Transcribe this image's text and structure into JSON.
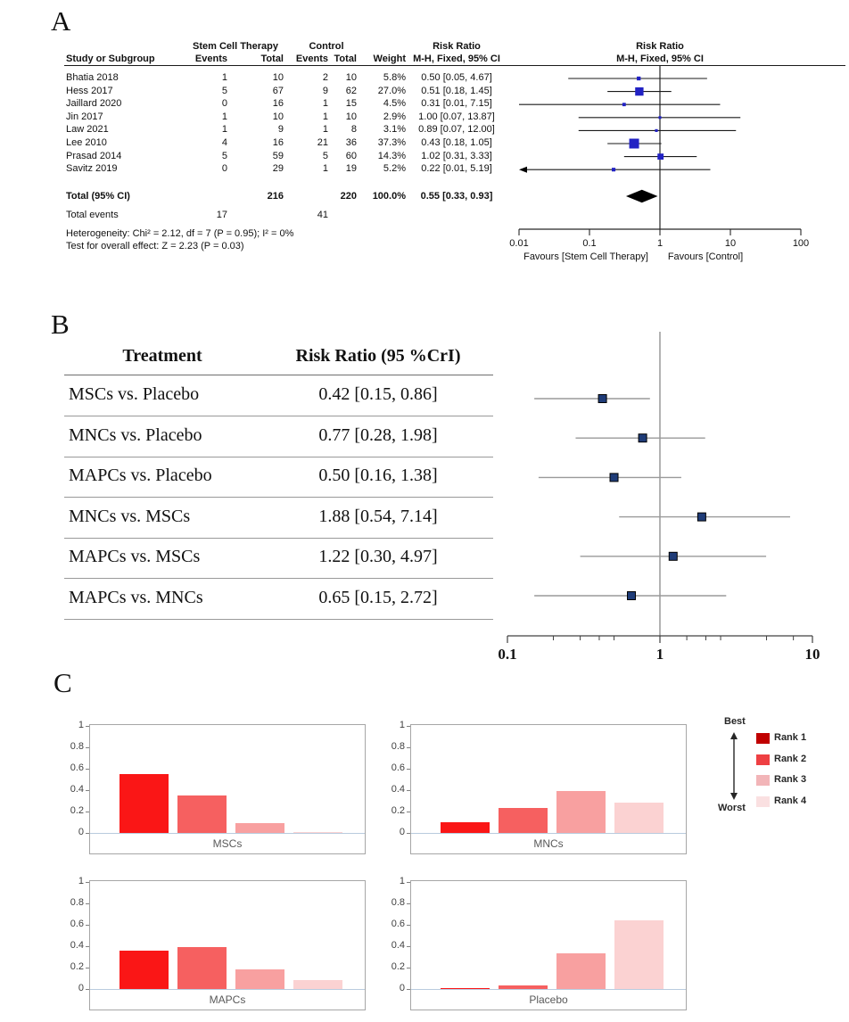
{
  "panels": {
    "A": {
      "label": "A",
      "table": {
        "group1": "Stem Cell Therapy",
        "group2": "Control",
        "risk_ratio_label": "Risk Ratio",
        "method_label": "M-H, Fixed, 95% CI",
        "col_study": "Study or Subgroup",
        "col_events": "Events",
        "col_total": "Total",
        "col_weight": "Weight",
        "rows": [
          {
            "study": "Bhatia 2018",
            "e1": "1",
            "t1": "10",
            "e2": "2",
            "t2": "10",
            "weight": "5.8%",
            "ci": "0.50 [0.05, 4.67]"
          },
          {
            "study": "Hess 2017",
            "e1": "5",
            "t1": "67",
            "e2": "9",
            "t2": "62",
            "weight": "27.0%",
            "ci": "0.51 [0.18, 1.45]"
          },
          {
            "study": "Jaillard 2020",
            "e1": "0",
            "t1": "16",
            "e2": "1",
            "t2": "15",
            "weight": "4.5%",
            "ci": "0.31 [0.01, 7.15]"
          },
          {
            "study": "Jin 2017",
            "e1": "1",
            "t1": "10",
            "e2": "1",
            "t2": "10",
            "weight": "2.9%",
            "ci": "1.00 [0.07, 13.87]"
          },
          {
            "study": "Law 2021",
            "e1": "1",
            "t1": "9",
            "e2": "1",
            "t2": "8",
            "weight": "3.1%",
            "ci": "0.89 [0.07, 12.00]"
          },
          {
            "study": "Lee 2010",
            "e1": "4",
            "t1": "16",
            "e2": "21",
            "t2": "36",
            "weight": "37.3%",
            "ci": "0.43 [0.18, 1.05]"
          },
          {
            "study": "Prasad 2014",
            "e1": "5",
            "t1": "59",
            "e2": "5",
            "t2": "60",
            "weight": "14.3%",
            "ci": "1.02 [0.31, 3.33]"
          },
          {
            "study": "Savitz 2019",
            "e1": "0",
            "t1": "29",
            "e2": "1",
            "t2": "19",
            "weight": "5.2%",
            "ci": "0.22 [0.01, 5.19]"
          }
        ],
        "total_label": "Total (95% CI)",
        "total_t1": "216",
        "total_t2": "220",
        "total_weight": "100.0%",
        "total_ci": "0.55 [0.33, 0.93]",
        "total_events_label": "Total events",
        "total_e1": "17",
        "total_e2": "41",
        "heterogeneity": "Heterogeneity: Chi² = 2.12, df = 7 (P = 0.95); I² = 0%",
        "overall_effect": "Test for overall effect: Z = 2.23 (P = 0.03)"
      }
    },
    "B": {
      "label": "B",
      "table": {
        "col_treatment": "Treatment",
        "col_rr": "Risk Ratio (95 %CrI)",
        "rows": [
          {
            "treatment": "MSCs vs. Placebo",
            "value": "0.42 [0.15, 0.86]"
          },
          {
            "treatment": "MNCs vs. Placebo",
            "value": "0.77 [0.28, 1.98]"
          },
          {
            "treatment": "MAPCs vs. Placebo",
            "value": "0.50 [0.16, 1.38]"
          },
          {
            "treatment": "MNCs vs. MSCs",
            "value": "1.88 [0.54, 7.14]"
          },
          {
            "treatment": "MAPCs vs. MSCs",
            "value": "1.22 [0.30, 4.97]"
          },
          {
            "treatment": "MAPCs vs. MNCs",
            "value": "0.65 [0.15, 2.72]"
          }
        ]
      }
    },
    "C": {
      "label": "C"
    }
  },
  "chart_data": [
    {
      "id": "panelA_forest",
      "type": "scatter",
      "scale": "log10",
      "xlim": [
        0.01,
        100
      ],
      "ticks": [
        0.01,
        0.1,
        1,
        10,
        100
      ],
      "tick_labels": [
        "0.01",
        "0.1",
        "1",
        "10",
        "100"
      ],
      "points": [
        {
          "study": "Bhatia 2018",
          "rr": 0.5,
          "lo": 0.05,
          "hi": 4.67,
          "weight_pct": 5.8
        },
        {
          "study": "Hess 2017",
          "rr": 0.51,
          "lo": 0.18,
          "hi": 1.45,
          "weight_pct": 27.0
        },
        {
          "study": "Jaillard 2020",
          "rr": 0.31,
          "lo": 0.01,
          "hi": 7.15,
          "weight_pct": 4.5
        },
        {
          "study": "Jin 2017",
          "rr": 1.0,
          "lo": 0.07,
          "hi": 13.87,
          "weight_pct": 2.9
        },
        {
          "study": "Law 2021",
          "rr": 0.89,
          "lo": 0.07,
          "hi": 12.0,
          "weight_pct": 3.1
        },
        {
          "study": "Lee 2010",
          "rr": 0.43,
          "lo": 0.18,
          "hi": 1.05,
          "weight_pct": 37.3
        },
        {
          "study": "Prasad 2014",
          "rr": 1.02,
          "lo": 0.31,
          "hi": 3.33,
          "weight_pct": 14.3
        },
        {
          "study": "Savitz 2019",
          "rr": 0.22,
          "lo": 0.01,
          "hi": 5.19,
          "weight_pct": 5.2,
          "arrow_lo": true
        }
      ],
      "diamond": {
        "rr": 0.55,
        "lo": 0.33,
        "hi": 0.93
      },
      "favours_left": "Favours [Stem Cell Therapy]",
      "favours_right": "Favours [Control]",
      "marker_color": "#2222C4"
    },
    {
      "id": "panelB_forest",
      "type": "scatter",
      "scale": "log10",
      "xlim": [
        0.1,
        10
      ],
      "ticks": [
        0.1,
        1,
        10
      ],
      "tick_labels": [
        "0.1",
        "1",
        "10"
      ],
      "minor_ticks": [
        0.2,
        0.3,
        0.4,
        0.5,
        1.5,
        2,
        2.5,
        5,
        7.5
      ],
      "points": [
        {
          "comparison": "MSCs vs. Placebo",
          "rr": 0.42,
          "lo": 0.15,
          "hi": 0.86
        },
        {
          "comparison": "MNCs vs. Placebo",
          "rr": 0.77,
          "lo": 0.28,
          "hi": 1.98
        },
        {
          "comparison": "MAPCs vs. Placebo",
          "rr": 0.5,
          "lo": 0.16,
          "hi": 1.38
        },
        {
          "comparison": "MNCs vs. MSCs",
          "rr": 1.88,
          "lo": 0.54,
          "hi": 7.14
        },
        {
          "comparison": "MAPCs vs. MSCs",
          "rr": 1.22,
          "lo": 0.3,
          "hi": 4.97
        },
        {
          "comparison": "MAPCs vs. MNCs",
          "rr": 0.65,
          "lo": 0.15,
          "hi": 2.72
        }
      ],
      "marker_color": "#1F3C78"
    },
    {
      "id": "panelC_rankograms",
      "type": "bar",
      "categories": [
        "Rank 1",
        "Rank 2",
        "Rank 3",
        "Rank 4"
      ],
      "ylim": [
        0,
        1
      ],
      "y_ticks": [
        0,
        0.2,
        0.4,
        0.6,
        0.8,
        1
      ],
      "y_tick_labels": [
        "0",
        "0.2",
        "0.4",
        "0.6",
        "0.8",
        "1"
      ],
      "charts": [
        {
          "title": "MSCs",
          "values": [
            0.55,
            0.35,
            0.09,
            0.01
          ]
        },
        {
          "title": "MNCs",
          "values": [
            0.1,
            0.23,
            0.39,
            0.28
          ]
        },
        {
          "title": "MAPCs",
          "values": [
            0.36,
            0.39,
            0.18,
            0.08
          ]
        },
        {
          "title": "Placebo",
          "values": [
            0.01,
            0.03,
            0.33,
            0.64
          ]
        }
      ],
      "bar_colors": [
        "#FA1616",
        "#F66060",
        "#F8A0A0",
        "#FBD2D2"
      ],
      "legend": {
        "best_label": "Best",
        "worst_label": "Worst",
        "items": [
          {
            "label": "Rank 1",
            "color": "#C00000"
          },
          {
            "label": "Rank 2",
            "color": "#EE4043"
          },
          {
            "label": "Rank 3",
            "color": "#F2B5B8"
          },
          {
            "label": "Rank 4",
            "color": "#FAE0E1"
          }
        ]
      }
    }
  ]
}
